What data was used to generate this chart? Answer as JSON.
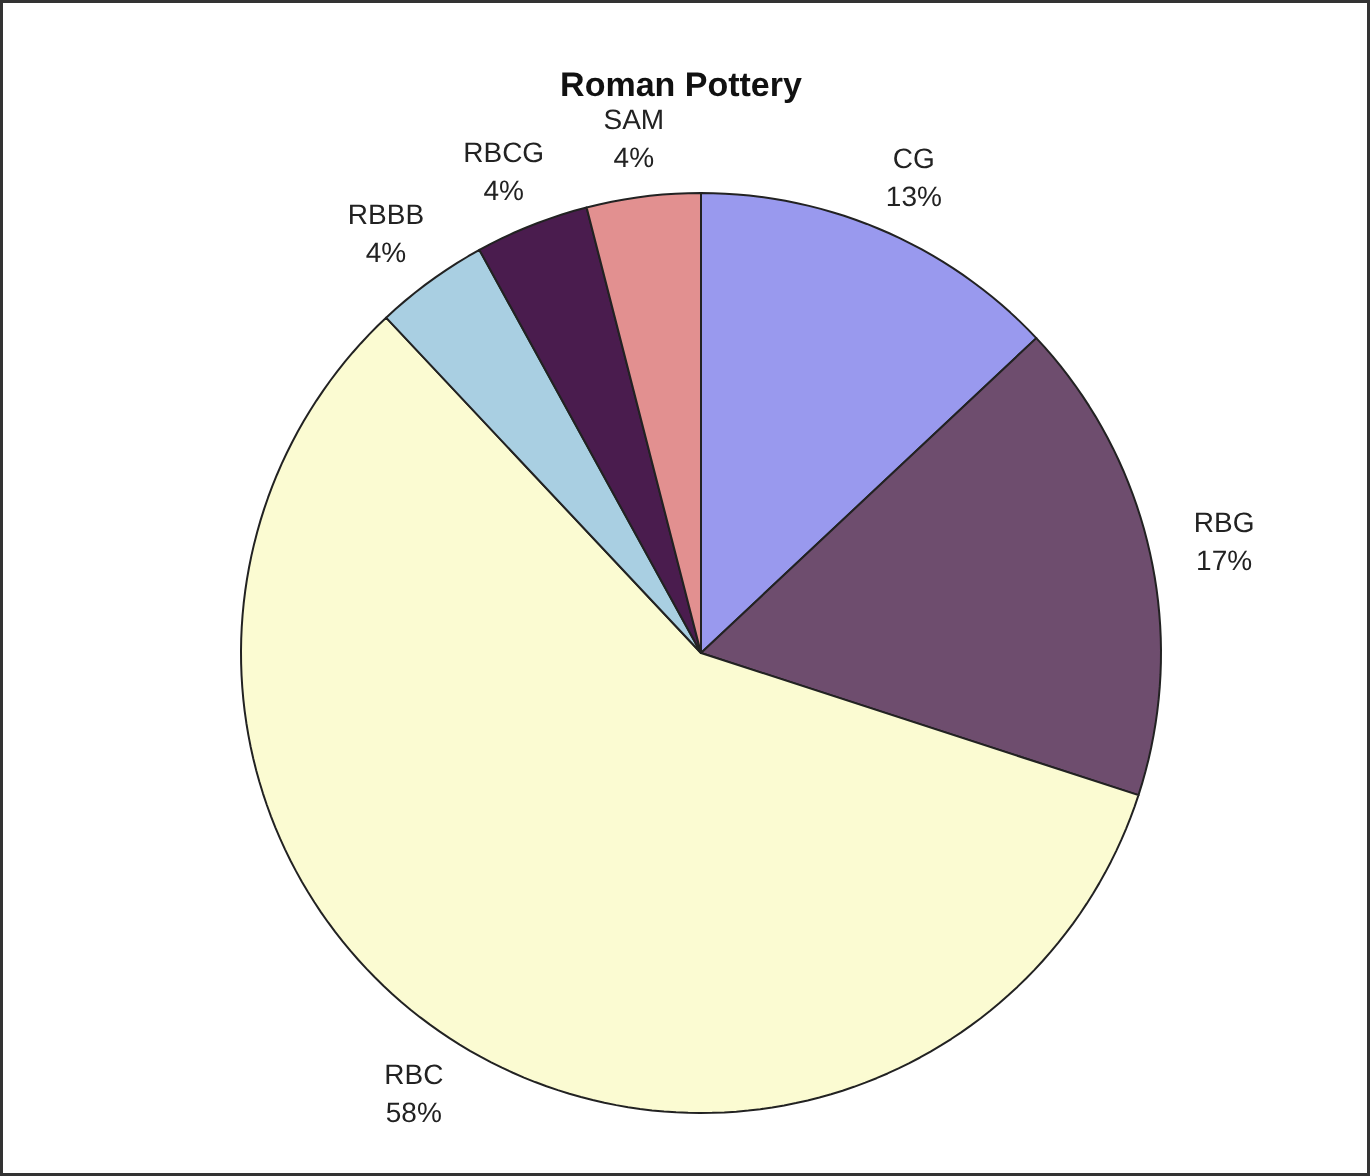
{
  "chart_data": {
    "type": "pie",
    "title": "Roman Pottery",
    "categories": [
      "CG",
      "RBG",
      "RBC",
      "RBBB",
      "RBCG",
      "SAM"
    ],
    "values": [
      13,
      17,
      58,
      4,
      4,
      4
    ],
    "value_labels": [
      "13%",
      "17%",
      "58%",
      "4%",
      "4%",
      "4%"
    ],
    "colors": [
      "#9999ee",
      "#6e4d6e",
      "#fbfbd2",
      "#a9cfe2",
      "#4a1c4e",
      "#e29090"
    ]
  }
}
